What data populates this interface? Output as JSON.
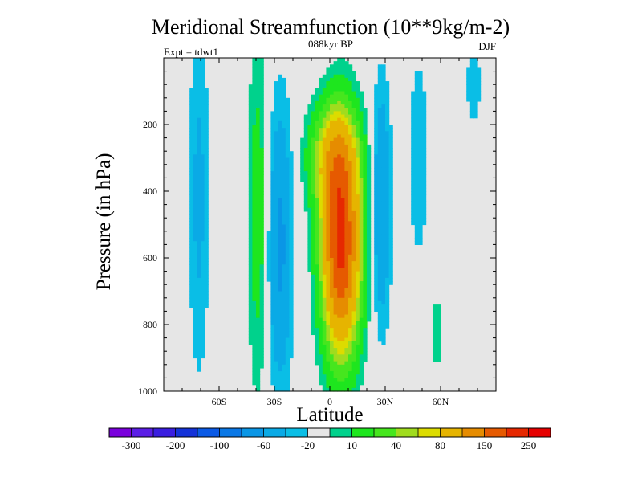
{
  "chart_data": {
    "type": "contour",
    "title": "Meridional Streamfunction (10**9kg/m-2)",
    "subtitle_center": "088kyr BP",
    "subtitle_left": "Expt = tdwt1",
    "subtitle_right": "DJF",
    "xlabel": "Latitude",
    "ylabel": "Pressure (in hPa)",
    "xlim": [
      -90,
      90
    ],
    "ylim": [
      0,
      1000
    ],
    "y_reversed": true,
    "x_ticks": [
      {
        "value": -60,
        "label": "60S"
      },
      {
        "value": -30,
        "label": "30S"
      },
      {
        "value": 0,
        "label": "0"
      },
      {
        "value": 30,
        "label": "30N"
      },
      {
        "value": 60,
        "label": "60N"
      }
    ],
    "y_ticks": [
      {
        "value": 200,
        "label": "200"
      },
      {
        "value": 400,
        "label": "400"
      },
      {
        "value": 600,
        "label": "600"
      },
      {
        "value": 800,
        "label": "800"
      },
      {
        "value": 1000,
        "label": "1000"
      }
    ],
    "levels": [
      -300,
      -250,
      -200,
      -150,
      -100,
      -80,
      -60,
      -40,
      -20,
      -10,
      10,
      20,
      40,
      60,
      80,
      100,
      150,
      200,
      250,
      300
    ],
    "colorbar_labels": [
      "-300",
      "-200",
      "-100",
      "-60",
      "-20",
      "10",
      "40",
      "80",
      "150",
      "250"
    ],
    "colors": [
      "#7a00dc",
      "#5b1ee6",
      "#3a1ee0",
      "#1432d8",
      "#0a5ae6",
      "#0a78e6",
      "#0a96e6",
      "#0aaae6",
      "#0abee6",
      "#e6e6e6",
      "#00d28c",
      "#1ee61e",
      "#46e61e",
      "#a0dc1e",
      "#dcdc00",
      "#e6b400",
      "#e68c00",
      "#e65a00",
      "#e62800",
      "#e60000"
    ],
    "background_color": "#e6e6e6",
    "features": [
      {
        "name": "Hadley cell NH-winter (tropical positive cell)",
        "lat": [
          -10,
          20
        ],
        "p": [
          80,
          980
        ],
        "max": 260,
        "center_lat": 6,
        "center_p": 560
      },
      {
        "name": "SH subtropical negative cell",
        "lat": [
          -42,
          -16
        ],
        "p": [
          170,
          1000
        ],
        "min": -40
      },
      {
        "name": "Ferrel cell SH (positive)",
        "lat": [
          -50,
          -32
        ],
        "p": [
          0,
          1000
        ],
        "max": 20
      },
      {
        "name": "SH polar negative cell",
        "lat": [
          -80,
          -61
        ],
        "p": [
          0,
          960
        ],
        "min": -20
      },
      {
        "name": "NH negative cell",
        "lat": [
          21,
          40
        ],
        "p": [
          60,
          950
        ],
        "min": -40
      }
    ]
  }
}
